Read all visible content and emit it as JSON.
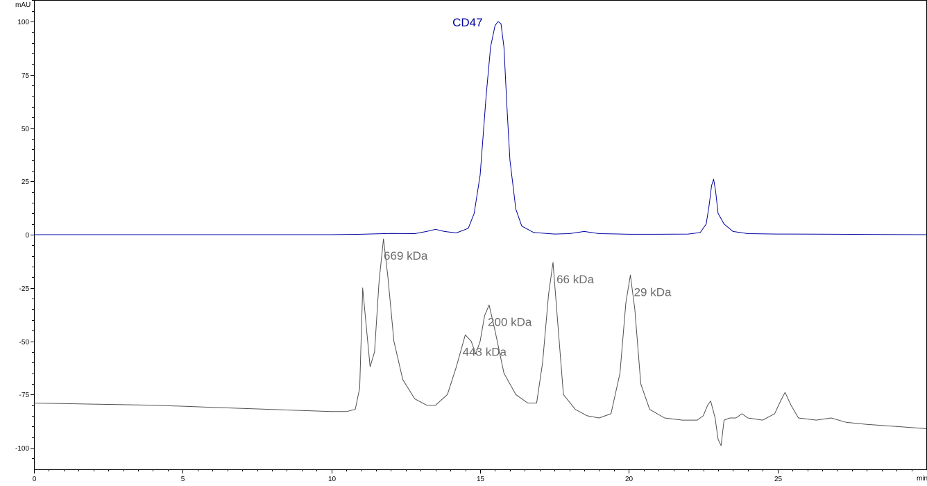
{
  "chart_data": {
    "type": "line",
    "title": "",
    "xlabel": "",
    "ylabel": "",
    "y_unit": "mAU",
    "x_unit": "min",
    "xlim": [
      0,
      30
    ],
    "ylim": [
      -110,
      110
    ],
    "x_ticks": [
      0,
      5,
      10,
      15,
      20,
      25
    ],
    "y_ticks": [
      100,
      75,
      50,
      25,
      0,
      -25,
      -50,
      -75,
      -100
    ],
    "grid": false,
    "legend": "none",
    "series": [
      {
        "color": "#0000a0",
        "x": [
          0,
          2,
          4,
          6,
          8,
          10,
          11,
          12,
          12.8,
          13.2,
          13.5,
          13.8,
          14.2,
          14.6,
          14.8,
          15.0,
          15.2,
          15.35,
          15.5,
          15.6,
          15.7,
          15.8,
          15.9,
          16.0,
          16.2,
          16.4,
          16.8,
          17.5,
          18.0,
          18.5,
          19.0,
          20.0,
          21.0,
          22.0,
          22.4,
          22.6,
          22.7,
          22.78,
          22.85,
          22.92,
          23.0,
          23.2,
          23.5,
          24.0,
          25.0,
          27.0,
          30.0
        ],
        "y": [
          0,
          0,
          0,
          0,
          0,
          0,
          0.2,
          0.6,
          0.5,
          1.5,
          2.5,
          1.5,
          0.8,
          3,
          10,
          28,
          65,
          88,
          98,
          100,
          99,
          88,
          60,
          35,
          12,
          4,
          1,
          0.3,
          0.5,
          1.5,
          0.5,
          0.2,
          0.2,
          0.3,
          1,
          5,
          14,
          23,
          26,
          20,
          10,
          5,
          1.5,
          0.5,
          0.3,
          0.2,
          0
        ],
        "annotations": [
          {
            "text": "CD47",
            "x": 15.55,
            "y": 100
          }
        ]
      },
      {
        "color": "#505050",
        "x": [
          0,
          2,
          4,
          6,
          8,
          9,
          10,
          10.5,
          10.8,
          10.95,
          11.05,
          11.15,
          11.3,
          11.45,
          11.6,
          11.75,
          11.9,
          12.1,
          12.4,
          12.8,
          13.2,
          13.5,
          13.9,
          14.2,
          14.5,
          14.7,
          14.85,
          15.0,
          15.15,
          15.3,
          15.5,
          15.8,
          16.2,
          16.6,
          16.9,
          17.1,
          17.3,
          17.45,
          17.6,
          17.8,
          18.2,
          18.6,
          19.0,
          19.4,
          19.7,
          19.9,
          20.05,
          20.2,
          20.4,
          20.7,
          21.2,
          21.8,
          22.3,
          22.5,
          22.65,
          22.75,
          22.9,
          23.0,
          23.1,
          23.2,
          23.4,
          23.6,
          23.8,
          24.0,
          24.5,
          24.9,
          25.1,
          25.25,
          25.45,
          25.7,
          26.3,
          26.8,
          27.3,
          28.0,
          29.0,
          30.0
        ],
        "y": [
          -79,
          -79.5,
          -80,
          -81,
          -82,
          -82.5,
          -83,
          -83,
          -82,
          -72,
          -25,
          -40,
          -62,
          -55,
          -22,
          -2,
          -20,
          -50,
          -68,
          -77,
          -80,
          -80,
          -75,
          -62,
          -47,
          -50,
          -56,
          -50,
          -38,
          -33,
          -45,
          -65,
          -75,
          -79,
          -79,
          -60,
          -28,
          -13,
          -40,
          -75,
          -82,
          -85,
          -86,
          -84,
          -65,
          -32,
          -19,
          -35,
          -70,
          -82,
          -86,
          -87,
          -87,
          -85,
          -80,
          -78,
          -86,
          -96,
          -99,
          -87,
          -86,
          -86,
          -84,
          -86,
          -87,
          -84,
          -78,
          -74,
          -80,
          -86,
          -87,
          -86,
          -88,
          -89,
          -90,
          -91
        ],
        "annotations": [
          {
            "text": "669 kDa",
            "x": 11.75,
            "y": -2
          },
          {
            "text": "443 kDa",
            "x": 14.4,
            "y": -47
          },
          {
            "text": "200 kDa",
            "x": 15.25,
            "y": -33
          },
          {
            "text": "66 kDa",
            "x": 17.45,
            "y": -13
          },
          {
            "text": "29 kDa",
            "x": 20.05,
            "y": -19
          }
        ]
      }
    ]
  },
  "styles": {
    "axis_color": "#000000",
    "label_color": "#6b6b6b",
    "cd47_color": "#0000a0"
  }
}
